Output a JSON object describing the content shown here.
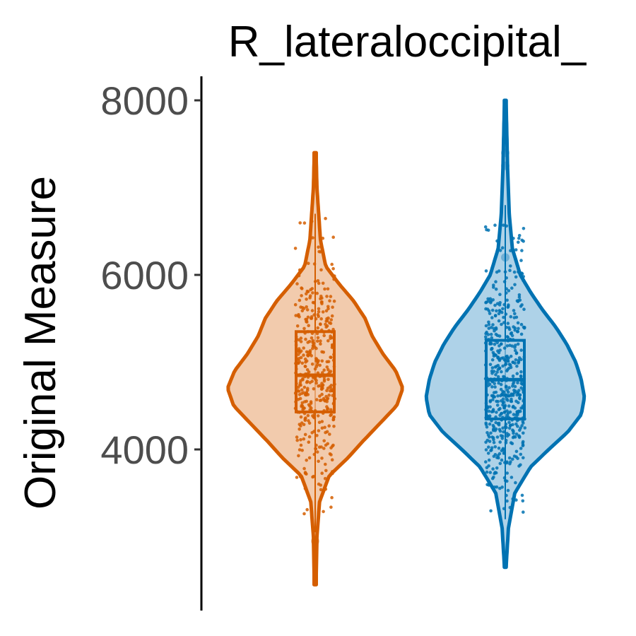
{
  "chart_data": {
    "type": "violin",
    "title": "R_lateraloccipital_",
    "ylabel": "Original Measure",
    "xlabel": "",
    "ylim": [
      2300,
      8250
    ],
    "yticks": [
      4000,
      6000,
      8000
    ],
    "ytick_labels": [
      "4000",
      "6000",
      "8000"
    ],
    "grid": false,
    "legend": "none",
    "groups": [
      {
        "color": "#d55e00",
        "fill": "#f2cbad",
        "min": 2450,
        "max": 7400,
        "q1": 4430,
        "median": 4850,
        "q3": 5350,
        "whisker_low": 3050,
        "whisker_high": 6700,
        "outliers": [
          2950
        ],
        "density": [
          [
            2450,
            0.01
          ],
          [
            3000,
            0.02
          ],
          [
            3400,
            0.05
          ],
          [
            3700,
            0.16
          ],
          [
            3900,
            0.37
          ],
          [
            4100,
            0.55
          ],
          [
            4300,
            0.74
          ],
          [
            4500,
            0.93
          ],
          [
            4700,
            1.0
          ],
          [
            4900,
            0.92
          ],
          [
            5100,
            0.77
          ],
          [
            5300,
            0.65
          ],
          [
            5500,
            0.57
          ],
          [
            5700,
            0.44
          ],
          [
            5900,
            0.27
          ],
          [
            6100,
            0.12
          ],
          [
            6400,
            0.06
          ],
          [
            6700,
            0.04
          ],
          [
            7000,
            0.02
          ],
          [
            7400,
            0.01
          ]
        ],
        "n_points": 420
      },
      {
        "color": "#0072b2",
        "fill": "#aed2e8",
        "min": 2650,
        "max": 8000,
        "q1": 4350,
        "median": 4800,
        "q3": 5250,
        "whisker_low": 3200,
        "whisker_high": 6800,
        "outliers": [
          6200,
          7250,
          7400
        ],
        "density": [
          [
            2650,
            0.01
          ],
          [
            3100,
            0.04
          ],
          [
            3500,
            0.12
          ],
          [
            3800,
            0.32
          ],
          [
            4000,
            0.55
          ],
          [
            4200,
            0.79
          ],
          [
            4400,
            0.96
          ],
          [
            4600,
            1.0
          ],
          [
            4800,
            0.96
          ],
          [
            5000,
            0.89
          ],
          [
            5200,
            0.78
          ],
          [
            5400,
            0.64
          ],
          [
            5600,
            0.47
          ],
          [
            5800,
            0.32
          ],
          [
            6000,
            0.19
          ],
          [
            6300,
            0.09
          ],
          [
            6700,
            0.05
          ],
          [
            7200,
            0.03
          ],
          [
            7600,
            0.02
          ],
          [
            8000,
            0.01
          ]
        ],
        "n_points": 560
      }
    ]
  }
}
